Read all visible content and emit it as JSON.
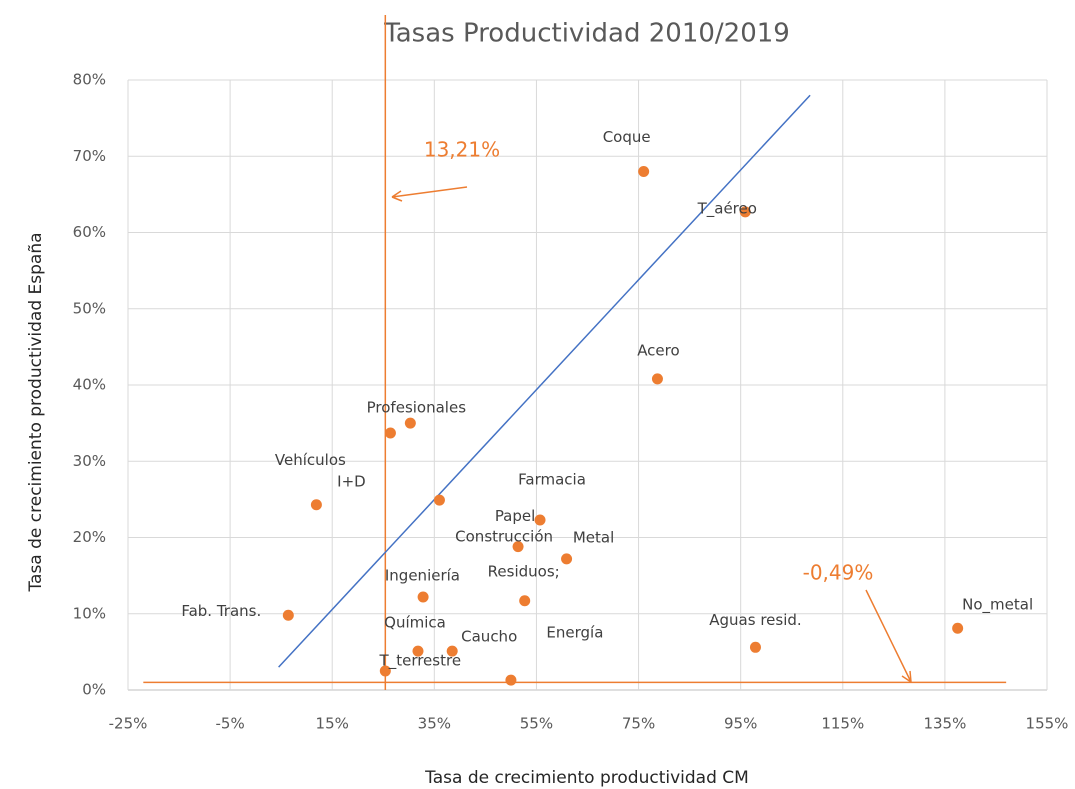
{
  "chart_data": {
    "type": "scatter",
    "title": "Tasas Productividad 2010/2019",
    "xlabel": "Tasa de crecimiento productividad CM",
    "ylabel": "Tasa de crecimiento productividad España",
    "labels": [
      "Coque",
      "T_aéreo",
      "Acero",
      "Profesionales",
      "I+D",
      "Vehículos",
      "Ingeniería",
      "Farmacia",
      "Papel",
      "Metal",
      "Residuos;",
      "Construcción",
      "Fab. Trans.",
      "Química",
      "Caucho",
      "Energía",
      "T_terrestre",
      "Aguas resid.",
      "No_metal"
    ],
    "x": [
      76,
      95.9,
      78.7,
      30.3,
      26.4,
      11.9,
      36,
      55.7,
      51.4,
      60.9,
      52.7,
      32.8,
      6.4,
      31.8,
      38.5,
      50,
      25.4,
      97.9,
      137.5
    ],
    "y": [
      68,
      62.7,
      40.8,
      35,
      33.7,
      24.3,
      24.9,
      22.3,
      18.8,
      17.2,
      11.7,
      12.2,
      9.8,
      5.1,
      5.1,
      1.3,
      2.5,
      5.6,
      8.1
    ],
    "color": "#ed7d31",
    "xlim": [
      -25,
      155
    ],
    "ylim": [
      0,
      80
    ],
    "xticks": [
      {
        "value": -25,
        "label": "-25%"
      },
      {
        "value": -5,
        "label": "-5%"
      },
      {
        "value": 15,
        "label": "15%"
      },
      {
        "value": 35,
        "label": "35%"
      },
      {
        "value": 55,
        "label": "55%"
      },
      {
        "value": 75,
        "label": "75%"
      },
      {
        "value": 95,
        "label": "95%"
      },
      {
        "value": 115,
        "label": "115%"
      },
      {
        "value": 135,
        "label": "135%"
      },
      {
        "value": 155,
        "label": "155%"
      }
    ],
    "yticks": [
      {
        "value": 0,
        "label": "0%"
      },
      {
        "value": 10,
        "label": "10%"
      },
      {
        "value": 20,
        "label": "20%"
      },
      {
        "value": 30,
        "label": "30%"
      },
      {
        "value": 40,
        "label": "40%"
      },
      {
        "value": 50,
        "label": "50%"
      },
      {
        "value": 60,
        "label": "60%"
      },
      {
        "value": 70,
        "label": "70%"
      },
      {
        "value": 80,
        "label": "80%"
      }
    ],
    "grid": true,
    "trendline": {
      "x": [
        4.5,
        108.6
      ],
      "y": [
        3.0,
        78.0
      ],
      "color": "#4472c4"
    },
    "vline": {
      "x": 25.4,
      "color": "#ed7d31"
    },
    "hline": {
      "y": 1.0,
      "x": [
        -22,
        147
      ],
      "color": "#ed7d31"
    },
    "annotations": [
      "13,21%",
      "-0,49%"
    ]
  }
}
